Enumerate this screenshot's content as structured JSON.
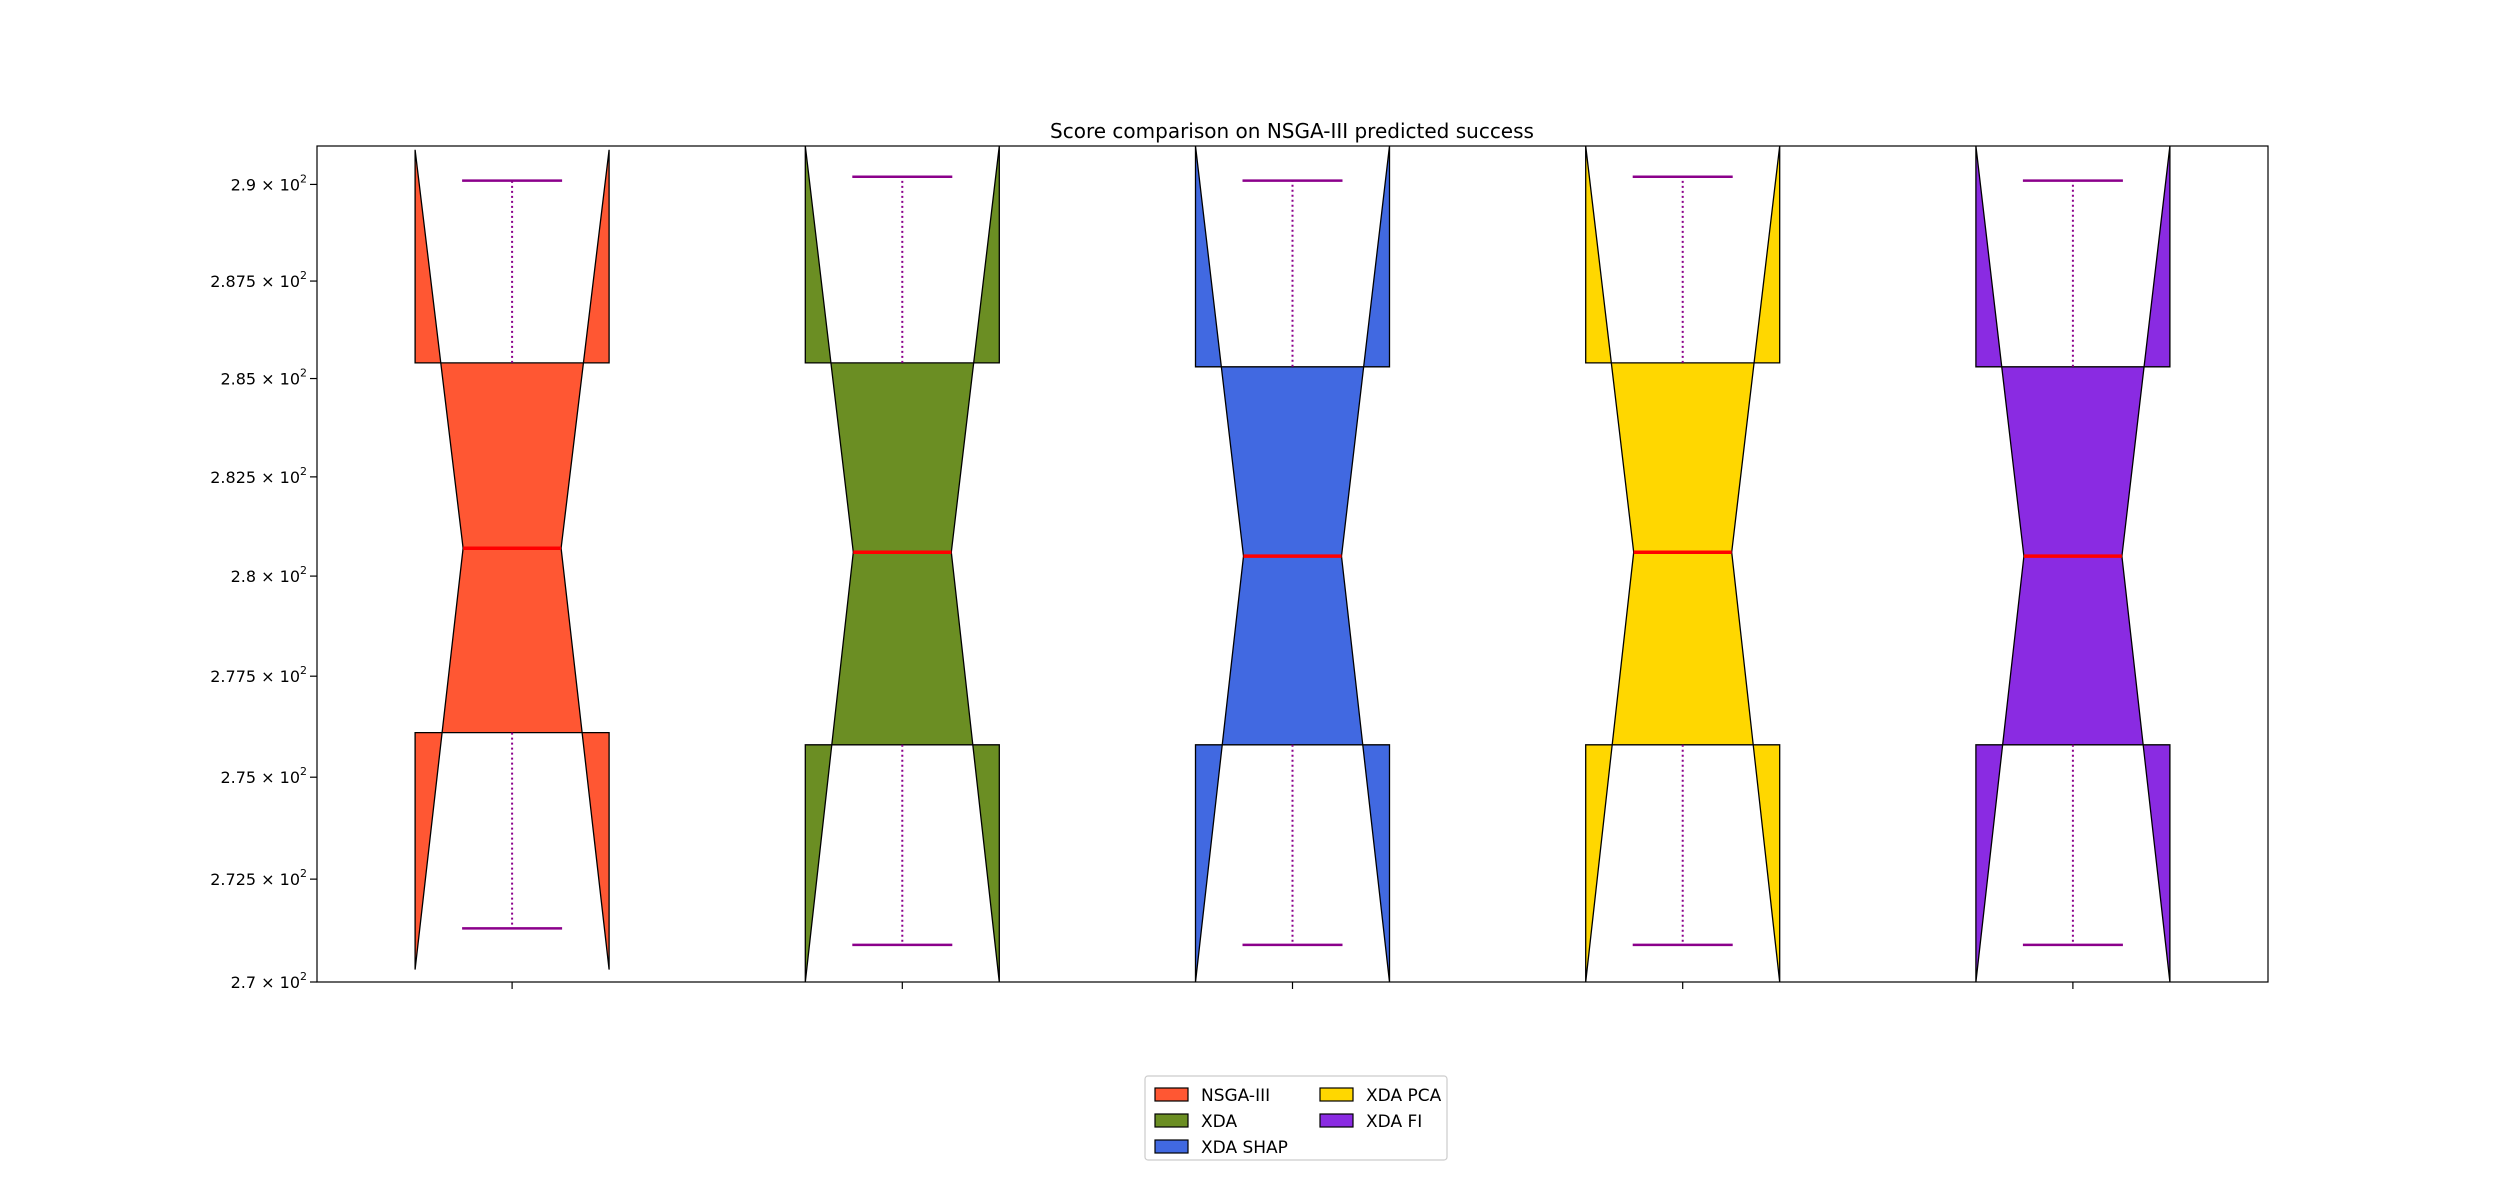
{
  "chart_data": {
    "type": "boxplot",
    "title": "Score comparison on NSGA-III predicted success",
    "xlabel": "",
    "ylabel": "",
    "yscale": "log",
    "ylim": [
      270.0,
      291.0
    ],
    "yticks": [
      270.0,
      272.5,
      275.0,
      277.5,
      280.0,
      282.5,
      285.0,
      287.5,
      290.0
    ],
    "ytick_labels": [
      {
        "mantissa": "2.7",
        "base": "10",
        "exp": "2"
      },
      {
        "mantissa": "2.725",
        "base": "10",
        "exp": "2"
      },
      {
        "mantissa": "2.75",
        "base": "10",
        "exp": "2"
      },
      {
        "mantissa": "2.775",
        "base": "10",
        "exp": "2"
      },
      {
        "mantissa": "2.8",
        "base": "10",
        "exp": "2"
      },
      {
        "mantissa": "2.825",
        "base": "10",
        "exp": "2"
      },
      {
        "mantissa": "2.85",
        "base": "10",
        "exp": "2"
      },
      {
        "mantissa": "2.875",
        "base": "10",
        "exp": "2"
      },
      {
        "mantissa": "2.9",
        "base": "10",
        "exp": "2"
      }
    ],
    "xticklabels": [
      "",
      "",
      "",
      "",
      ""
    ],
    "notched": true,
    "series": [
      {
        "name": "NSGA-III",
        "color": "#FF5733",
        "whisker_low": 271.3,
        "q1": 276.1,
        "median": 280.7,
        "q3": 285.4,
        "whisker_high": 290.1,
        "notch_low": 270.3,
        "notch_high": 290.9
      },
      {
        "name": "XDA",
        "color": "#6B8E23",
        "whisker_low": 270.9,
        "q1": 275.8,
        "median": 280.6,
        "q3": 285.4,
        "whisker_high": 290.2,
        "notch_low": 269.9,
        "notch_high": 291.1
      },
      {
        "name": "XDA SHAP",
        "color": "#4169E1",
        "whisker_low": 270.9,
        "q1": 275.8,
        "median": 280.5,
        "q3": 285.3,
        "whisker_high": 290.1,
        "notch_low": 269.8,
        "notch_high": 291.1
      },
      {
        "name": "XDA PCA",
        "color": "#FFD700",
        "whisker_low": 270.9,
        "q1": 275.8,
        "median": 280.6,
        "q3": 285.4,
        "whisker_high": 290.2,
        "notch_low": 269.9,
        "notch_high": 291.1
      },
      {
        "name": "XDA FI",
        "color": "#8A2BE2",
        "whisker_low": 270.9,
        "q1": 275.8,
        "median": 280.5,
        "q3": 285.3,
        "whisker_high": 290.1,
        "notch_low": 269.8,
        "notch_high": 291.0
      }
    ],
    "whisker_color": "#8B008B",
    "median_color": "#FF0000",
    "grid": false,
    "legend": {
      "placement": "bottom-center",
      "columns": 2
    }
  }
}
